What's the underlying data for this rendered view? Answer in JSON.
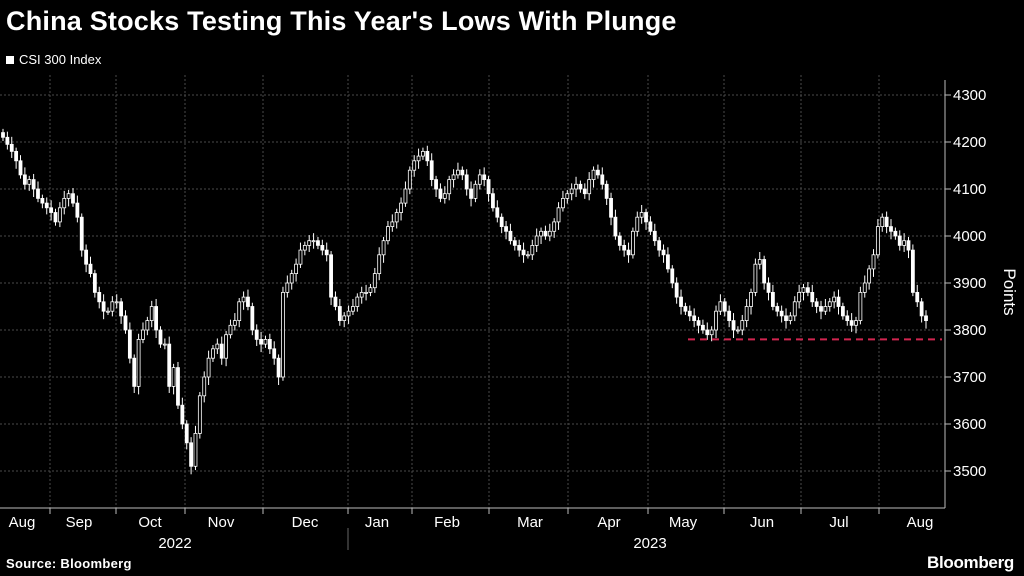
{
  "title": "China Stocks Testing This Year's Lows With Plunge",
  "source": "Source: Bloomberg",
  "brand": "Bloomberg",
  "colors": {
    "background": "#000000",
    "candle": "#ffffff",
    "reference_line": "#d1254f",
    "grid": "#5a5a5a"
  },
  "chart_data": {
    "type": "candlestick",
    "series": [
      {
        "name": "CSI 300 Index"
      }
    ],
    "ylabel": "Points",
    "yticks": [
      3500,
      3600,
      3700,
      3800,
      3900,
      4000,
      4100,
      4200,
      4300
    ],
    "ylim": [
      3460,
      4330
    ],
    "months": [
      "Aug",
      "Sep",
      "Oct",
      "Nov",
      "Dec",
      "Jan",
      "Feb",
      "Mar",
      "Apr",
      "May",
      "Jun",
      "Jul",
      "Aug"
    ],
    "years": [
      "2022",
      "2023"
    ],
    "reference_line": {
      "value": 3780,
      "style": "dashed"
    },
    "grid": true,
    "close_approx": [
      4210,
      4195,
      4180,
      4160,
      4130,
      4110,
      4120,
      4100,
      4080,
      4070,
      4060,
      4050,
      4030,
      4060,
      4080,
      4090,
      4070,
      4040,
      3970,
      3940,
      3920,
      3880,
      3860,
      3840,
      3840,
      3860,
      3860,
      3830,
      3800,
      3740,
      3680,
      3780,
      3800,
      3820,
      3850,
      3800,
      3770,
      3770,
      3680,
      3720,
      3640,
      3600,
      3560,
      3510,
      3580,
      3660,
      3700,
      3740,
      3760,
      3770,
      3740,
      3790,
      3810,
      3820,
      3860,
      3870,
      3850,
      3800,
      3780,
      3770,
      3780,
      3760,
      3740,
      3700,
      3880,
      3900,
      3920,
      3940,
      3970,
      3980,
      3990,
      3990,
      3980,
      3970,
      3960,
      3870,
      3850,
      3820,
      3830,
      3840,
      3850,
      3870,
      3880,
      3880,
      3890,
      3920,
      3960,
      3990,
      4020,
      4030,
      4050,
      4070,
      4100,
      4140,
      4160,
      4170,
      4180,
      4160,
      4120,
      4100,
      4080,
      4090,
      4120,
      4130,
      4140,
      4130,
      4100,
      4080,
      4110,
      4130,
      4120,
      4090,
      4060,
      4040,
      4020,
      4010,
      3990,
      3980,
      3970,
      3960,
      3960,
      3980,
      4000,
      4010,
      4000,
      4010,
      4030,
      4060,
      4080,
      4090,
      4100,
      4110,
      4100,
      4090,
      4120,
      4140,
      4130,
      4110,
      4080,
      4040,
      4000,
      3980,
      3970,
      3960,
      4010,
      4040,
      4050,
      4030,
      4010,
      3990,
      3970,
      3960,
      3930,
      3900,
      3870,
      3850,
      3840,
      3830,
      3820,
      3810,
      3800,
      3790,
      3800,
      3840,
      3860,
      3840,
      3820,
      3800,
      3800,
      3820,
      3850,
      3880,
      3940,
      3950,
      3900,
      3880,
      3850,
      3840,
      3830,
      3820,
      3830,
      3860,
      3880,
      3890,
      3880,
      3860,
      3850,
      3840,
      3850,
      3860,
      3870,
      3850,
      3830,
      3820,
      3810,
      3820,
      3880,
      3900,
      3930,
      3960,
      4020,
      4040,
      4020,
      4010,
      4000,
      3980,
      3990,
      3970,
      3880,
      3860,
      3830,
      3820
    ]
  }
}
